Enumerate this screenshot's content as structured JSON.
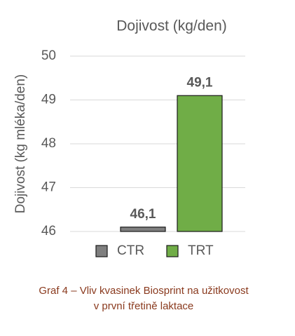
{
  "chart_data": {
    "type": "bar",
    "title": "Dojivost (kg/den)",
    "y_label": "Dojivost (kg mléka/den)",
    "categories": [
      "CTR",
      "TRT"
    ],
    "values": [
      46.1,
      49.1
    ],
    "value_labels": [
      "46,1",
      "49,1"
    ],
    "colors": [
      "#7f7f7f",
      "#70ad47"
    ],
    "ylim": [
      46,
      50
    ],
    "yticks": [
      46,
      47,
      48,
      49,
      50
    ],
    "grid": true,
    "legend": "bottom"
  },
  "caption": [
    "Graf 4 – Vliv kvasinek Biosprint na užitkovost",
    "v první třetině laktace"
  ]
}
